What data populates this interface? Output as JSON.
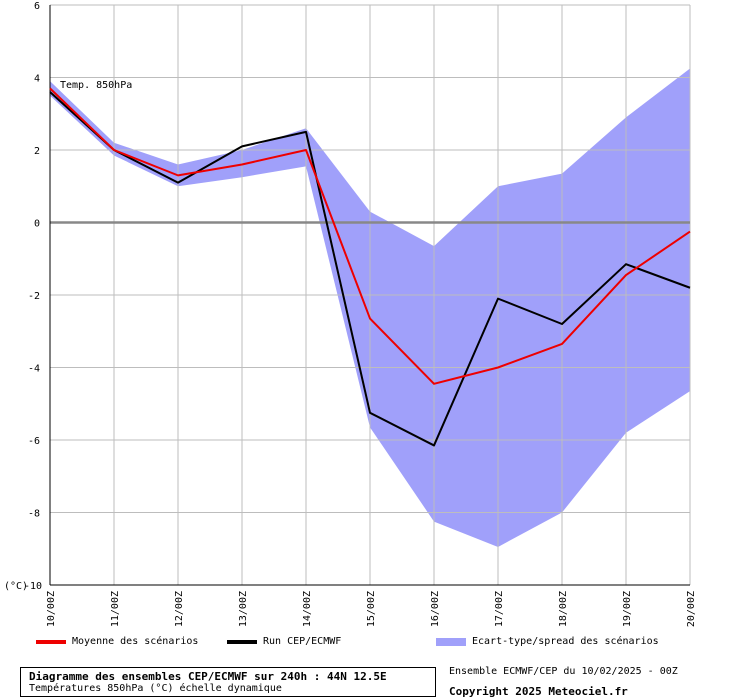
{
  "chart_data": {
    "type": "line",
    "title": "Diagramme des ensembles CEP/ECMWF sur 240h : 44N 12.5E",
    "subtitle": "Températures 850hPa (°C) échelle dynamique",
    "in_plot_label": "Temp. 850hPa",
    "ylabel": "(°C)",
    "categories": [
      "10/00Z",
      "11/00Z",
      "12/00Z",
      "13/00Z",
      "14/00Z",
      "15/00Z",
      "16/00Z",
      "17/00Z",
      "18/00Z",
      "19/00Z",
      "20/00Z"
    ],
    "ylim": [
      -10,
      6
    ],
    "yticks": [
      6,
      4,
      2,
      0,
      -2,
      -4,
      -6,
      -8,
      -10
    ],
    "grid": true,
    "zero_line": true,
    "series": [
      {
        "name": "Moyenne des scénarios",
        "kind": "line",
        "color": "#ee0000",
        "values": [
          3.7,
          2.0,
          1.3,
          1.6,
          2.0,
          -2.65,
          -4.45,
          -4.0,
          -3.35,
          -1.45,
          -0.25
        ]
      },
      {
        "name": "Run CEP/ECMWF",
        "kind": "line",
        "color": "#000000",
        "values": [
          3.6,
          2.0,
          1.1,
          2.1,
          2.5,
          -5.25,
          -6.15,
          -2.1,
          -2.8,
          -1.15,
          -1.8
        ]
      },
      {
        "name": "Ecart-type/spread des scénarios",
        "kind": "band",
        "color": "#a0a0fa",
        "upper": [
          3.9,
          2.2,
          1.6,
          2.0,
          2.6,
          0.3,
          -0.65,
          1.0,
          1.35,
          2.9,
          4.25
        ],
        "lower": [
          3.5,
          1.85,
          1.0,
          1.25,
          1.55,
          -5.65,
          -8.25,
          -8.95,
          -8.0,
          -5.8,
          -4.65
        ]
      }
    ],
    "legend_position": "bottom"
  },
  "footer": {
    "source": "Ensemble ECMWF/CEP du 10/02/2025 - 00Z",
    "copyright": "Copyright 2025 Meteociel.fr"
  }
}
